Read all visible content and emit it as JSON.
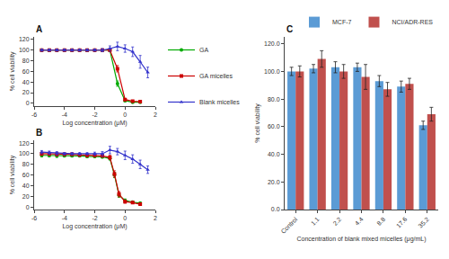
{
  "chart_data": [
    {
      "type": "line",
      "title": "A",
      "xlabel": "Log concentration (μM)",
      "ylabel": "% cell viability",
      "xlim": [
        -6,
        2
      ],
      "ylim": [
        -5,
        125
      ],
      "xticks": [
        -6,
        -4,
        -2,
        0,
        2
      ],
      "yticks": [
        0,
        20,
        40,
        60,
        80,
        100,
        120
      ],
      "grid": false,
      "legend": "right",
      "series": [
        {
          "name": "GA",
          "color": "#00aa00",
          "marker": "circle",
          "x": [
            -5.5,
            -5,
            -4.5,
            -4,
            -3.5,
            -3,
            -2.5,
            -2,
            -1.5,
            -1,
            -0.5,
            0,
            0.5,
            1
          ],
          "values": [
            100,
            100,
            100,
            100,
            100,
            100,
            100,
            100,
            100,
            100,
            37,
            5,
            2,
            2
          ],
          "errors": [
            2,
            2,
            2,
            2,
            2,
            2,
            2,
            2,
            2,
            3,
            5,
            2,
            1,
            1
          ]
        },
        {
          "name": "GA micelles",
          "color": "#cc0000",
          "marker": "square",
          "x": [
            -5.5,
            -5,
            -4.5,
            -4,
            -3.5,
            -3,
            -2.5,
            -2,
            -1.5,
            -1,
            -0.5,
            0,
            0.5,
            1
          ],
          "values": [
            100,
            100,
            100,
            100,
            100,
            100,
            100,
            100,
            100,
            100,
            65,
            7,
            4,
            3
          ],
          "errors": [
            2,
            2,
            2,
            2,
            2,
            2,
            2,
            2,
            2,
            3,
            6,
            2,
            1,
            1
          ]
        },
        {
          "name": "Blank micelles",
          "color": "#3333cc",
          "marker": "triangle-up",
          "x": [
            -5.5,
            -5,
            -4.5,
            -4,
            -3.5,
            -3,
            -2.5,
            -2,
            -1.5,
            -1,
            -0.5,
            0,
            0.5,
            1,
            1.5
          ],
          "values": [
            100,
            100,
            100,
            100,
            100,
            100,
            100,
            100,
            100,
            103,
            107,
            103,
            97,
            78,
            58
          ],
          "errors": [
            2,
            2,
            2,
            2,
            2,
            2,
            2,
            2,
            3,
            5,
            8,
            7,
            9,
            12,
            10
          ]
        }
      ]
    },
    {
      "type": "line",
      "title": "B",
      "xlabel": "Log concentration (μM)",
      "ylabel": "% cell viability",
      "xlim": [
        -6,
        2
      ],
      "ylim": [
        -5,
        125
      ],
      "xticks": [
        -6,
        -4,
        -2,
        0,
        2
      ],
      "yticks": [
        0,
        20,
        40,
        60,
        80,
        100,
        120
      ],
      "grid": false,
      "series": [
        {
          "name": "GA",
          "color": "#00aa00",
          "marker": "circle",
          "x": [
            -5.5,
            -5,
            -4.5,
            -4,
            -3.5,
            -3,
            -2.5,
            -2,
            -1.5,
            -1,
            -0.7,
            -0.4,
            0,
            0.5,
            1
          ],
          "values": [
            97,
            97,
            96,
            96,
            96,
            96,
            95,
            95,
            94,
            91,
            60,
            22,
            12,
            9,
            7
          ],
          "errors": [
            3,
            3,
            3,
            2,
            2,
            2,
            2,
            2,
            2,
            3,
            5,
            4,
            3,
            2,
            2
          ]
        },
        {
          "name": "GA micelles",
          "color": "#cc0000",
          "marker": "square",
          "x": [
            -5.5,
            -5,
            -4.5,
            -4,
            -3.5,
            -3,
            -2.5,
            -2,
            -1.5,
            -1,
            -0.7,
            -0.4,
            0,
            0.5,
            1
          ],
          "values": [
            100,
            100,
            99,
            99,
            99,
            98,
            97,
            97,
            96,
            93,
            62,
            24,
            10,
            8,
            5
          ],
          "errors": [
            3,
            3,
            3,
            2,
            2,
            2,
            2,
            2,
            2,
            4,
            6,
            5,
            3,
            2,
            2
          ]
        },
        {
          "name": "Blank micelles",
          "color": "#3333cc",
          "marker": "triangle-up",
          "x": [
            -5.5,
            -5,
            -4.5,
            -4,
            -3.5,
            -3,
            -2.5,
            -2,
            -1.5,
            -1,
            -0.5,
            0,
            0.5,
            1,
            1.5
          ],
          "values": [
            103,
            102,
            101,
            100,
            100,
            100,
            100,
            100,
            100,
            107,
            104,
            97,
            90,
            80,
            70
          ],
          "errors": [
            3,
            3,
            3,
            2,
            2,
            2,
            2,
            3,
            4,
            7,
            6,
            8,
            8,
            8,
            7
          ]
        }
      ]
    },
    {
      "type": "bar",
      "title": "C",
      "xlabel": "Concentration of blank mixed micelles (μg/mL)",
      "ylabel": "% cell viability",
      "categories": [
        "Control",
        "1.1",
        "2.2",
        "4.4",
        "8.8",
        "17.6",
        "35.2"
      ],
      "ylim": [
        0,
        125
      ],
      "yticks": [
        {
          "value": 0,
          "label": "0.0"
        },
        {
          "value": 20,
          "label": "20.0"
        },
        {
          "value": 40,
          "label": "40.0"
        },
        {
          "value": 60,
          "label": "60.0"
        },
        {
          "value": 80,
          "label": "80.0"
        },
        {
          "value": 100,
          "label": "100.0"
        },
        {
          "value": 120,
          "label": "120.0"
        }
      ],
      "grid": false,
      "legend": "upper right",
      "series": [
        {
          "name": "MCF-7",
          "color": "#5b9bd5",
          "values": [
            100,
            102,
            103,
            103,
            93,
            89,
            61
          ],
          "errors": [
            3,
            3,
            4,
            3,
            4,
            4,
            3
          ]
        },
        {
          "name": "NCI/ADR-RES",
          "color": "#c0504d",
          "values": [
            100,
            109,
            100,
            96,
            87,
            91,
            69
          ],
          "errors": [
            4,
            6,
            5,
            9,
            5,
            4,
            5
          ]
        }
      ]
    }
  ]
}
